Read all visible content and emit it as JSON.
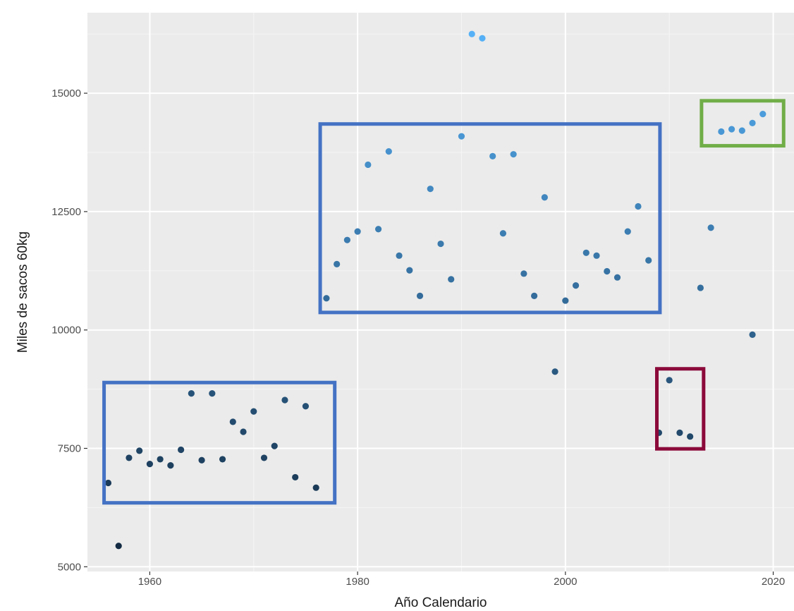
{
  "chart_data": {
    "type": "scatter",
    "title": "",
    "xlabel": "Año Calendario",
    "ylabel": "Miles de sacos 60kg",
    "xlim": [
      1954,
      2022
    ],
    "ylim": [
      4900,
      16700
    ],
    "xticks": [
      1960,
      1980,
      2000,
      2020
    ],
    "yticks": [
      5000,
      7500,
      10000,
      12500,
      15000
    ],
    "grid": true,
    "background": "#ebebeb",
    "color_scale": {
      "low": "#132b43",
      "high": "#56b1f7"
    },
    "points": [
      {
        "x": 1956,
        "y": 6770
      },
      {
        "x": 1957,
        "y": 5440
      },
      {
        "x": 1958,
        "y": 7300
      },
      {
        "x": 1959,
        "y": 7450
      },
      {
        "x": 1960,
        "y": 7170
      },
      {
        "x": 1961,
        "y": 7270
      },
      {
        "x": 1962,
        "y": 7140
      },
      {
        "x": 1963,
        "y": 7470
      },
      {
        "x": 1964,
        "y": 8660
      },
      {
        "x": 1965,
        "y": 7250
      },
      {
        "x": 1966,
        "y": 8660
      },
      {
        "x": 1967,
        "y": 7270
      },
      {
        "x": 1968,
        "y": 8060
      },
      {
        "x": 1969,
        "y": 7850
      },
      {
        "x": 1970,
        "y": 8280
      },
      {
        "x": 1971,
        "y": 7300
      },
      {
        "x": 1972,
        "y": 7550
      },
      {
        "x": 1973,
        "y": 8520
      },
      {
        "x": 1974,
        "y": 6890
      },
      {
        "x": 1975,
        "y": 8390
      },
      {
        "x": 1976,
        "y": 6670
      },
      {
        "x": 1977,
        "y": 10670
      },
      {
        "x": 1978,
        "y": 11390
      },
      {
        "x": 1979,
        "y": 11900
      },
      {
        "x": 1980,
        "y": 12080
      },
      {
        "x": 1981,
        "y": 13490
      },
      {
        "x": 1982,
        "y": 12130
      },
      {
        "x": 1983,
        "y": 13770
      },
      {
        "x": 1984,
        "y": 11570
      },
      {
        "x": 1985,
        "y": 11260
      },
      {
        "x": 1986,
        "y": 10720
      },
      {
        "x": 1987,
        "y": 12980
      },
      {
        "x": 1988,
        "y": 11820
      },
      {
        "x": 1989,
        "y": 11070
      },
      {
        "x": 1990,
        "y": 14090
      },
      {
        "x": 1991,
        "y": 16250
      },
      {
        "x": 1992,
        "y": 16160
      },
      {
        "x": 1993,
        "y": 13670
      },
      {
        "x": 1994,
        "y": 12040
      },
      {
        "x": 1995,
        "y": 13710
      },
      {
        "x": 1996,
        "y": 11190
      },
      {
        "x": 1997,
        "y": 10720
      },
      {
        "x": 1998,
        "y": 12800
      },
      {
        "x": 1999,
        "y": 9120
      },
      {
        "x": 2000,
        "y": 10620
      },
      {
        "x": 2001,
        "y": 10940
      },
      {
        "x": 2002,
        "y": 11630
      },
      {
        "x": 2003,
        "y": 11570
      },
      {
        "x": 2004,
        "y": 11240
      },
      {
        "x": 2005,
        "y": 11110
      },
      {
        "x": 2006,
        "y": 12080
      },
      {
        "x": 2007,
        "y": 12610
      },
      {
        "x": 2008,
        "y": 11470
      },
      {
        "x": 2009,
        "y": 7830
      },
      {
        "x": 2010,
        "y": 8940
      },
      {
        "x": 2011,
        "y": 7830
      },
      {
        "x": 2012,
        "y": 7750
      },
      {
        "x": 2013,
        "y": 10890
      },
      {
        "x": 2014,
        "y": 12160
      },
      {
        "x": 2015,
        "y": 14190
      },
      {
        "x": 2016,
        "y": 14240
      },
      {
        "x": 2017,
        "y": 14210
      },
      {
        "x": 2018,
        "y": 9900
      },
      {
        "x": 2018,
        "y": 14370
      },
      {
        "x": 2019,
        "y": 14560
      }
    ],
    "annotation_boxes": [
      {
        "name": "box-1956-1976",
        "color": "#4472c4",
        "x_range": [
          1955.6,
          1977.8
        ],
        "y_range": [
          6350,
          8890
        ]
      },
      {
        "name": "box-1977-2008",
        "color": "#4472c4",
        "x_range": [
          1976.4,
          2009.1
        ],
        "y_range": [
          10370,
          14350
        ]
      },
      {
        "name": "box-2009-2012",
        "color": "#8b0a3a",
        "x_range": [
          2008.8,
          2013.3
        ],
        "y_range": [
          7490,
          9180
        ]
      },
      {
        "name": "box-2015-2019",
        "color": "#70ad47",
        "x_range": [
          2013.1,
          2021.0
        ],
        "y_range": [
          13890,
          14840
        ]
      }
    ]
  }
}
